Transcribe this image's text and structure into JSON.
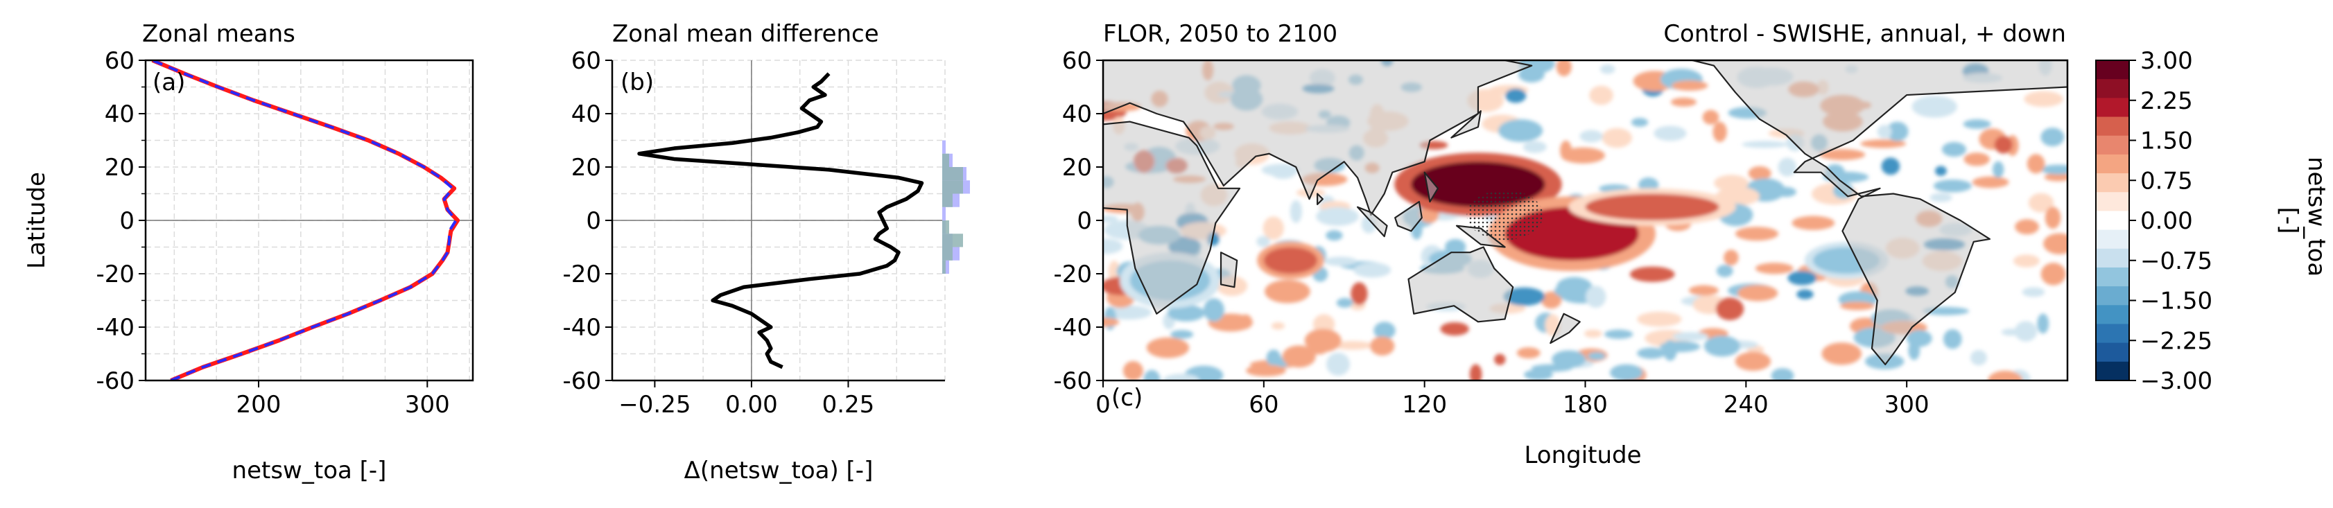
{
  "figure": {
    "panel_a_title": "Zonal means",
    "panel_b_title": "Zonal mean difference",
    "panel_c_title_left": "FLOR, 2050 to 2100",
    "panel_c_title_right": "Control - SWISHE, annual, + down",
    "colorbar_label": "netsw_toa\n[-]",
    "colors": {
      "control_line": "#ff1a1a",
      "swishe_line": "#2a2aff",
      "diff_line": "#000000",
      "land": "#d9d9d9",
      "hist_blue": "#b8b8ff",
      "hist_green": "#8fb3b3"
    }
  },
  "chart_data": [
    {
      "type": "line",
      "panel": "(a)",
      "title": "Zonal means",
      "xlabel": "netsw_toa [-]",
      "ylabel": "Latitude",
      "xlim": [
        133,
        327
      ],
      "ylim": [
        -60,
        60
      ],
      "xticks": [
        200,
        300
      ],
      "yticks": [
        -60,
        -40,
        -20,
        0,
        20,
        40,
        60
      ],
      "grid": true,
      "series": [
        {
          "color": "#ff1a1a",
          "style": "solid",
          "lat": [
            -60,
            -55,
            -50,
            -45,
            -40,
            -35,
            -30,
            -25,
            -20,
            -15,
            -12,
            -8,
            -4,
            0,
            4,
            8,
            12,
            16,
            20,
            25,
            30,
            35,
            40,
            45,
            50,
            55,
            60
          ],
          "values": [
            148,
            167,
            190,
            212,
            232,
            253,
            272,
            290,
            303,
            309,
            312,
            313,
            314,
            318,
            312,
            310,
            316,
            308,
            298,
            283,
            265,
            243,
            220,
            197,
            176,
            156,
            137
          ]
        },
        {
          "color": "#2a2aff",
          "style": "dashed",
          "lat": [
            -60,
            -55,
            -50,
            -45,
            -40,
            -35,
            -30,
            -25,
            -20,
            -15,
            -12,
            -8,
            -4,
            0,
            4,
            8,
            12,
            16,
            20,
            25,
            30,
            35,
            40,
            45,
            50,
            55,
            60
          ],
          "values": [
            148,
            167,
            190,
            212,
            232,
            253,
            272,
            290,
            303,
            309,
            312,
            313,
            313,
            317,
            312,
            310,
            315,
            308,
            298,
            283,
            265,
            243,
            220,
            197,
            176,
            156,
            137
          ]
        }
      ]
    },
    {
      "type": "line",
      "panel": "(b)",
      "title": "Zonal mean difference",
      "xlabel": "Δ(netsw_toa) [-]",
      "xlim": [
        -0.36,
        0.5
      ],
      "ylim": [
        -60,
        60
      ],
      "xticks": [
        -0.25,
        0.0,
        0.25
      ],
      "yticks": [
        -60,
        -40,
        -20,
        0,
        20,
        40,
        60
      ],
      "grid": true,
      "series": [
        {
          "color": "#000000",
          "lat": [
            -55,
            -53,
            -50,
            -48,
            -45,
            -42,
            -40,
            -38,
            -35,
            -32,
            -30,
            -28,
            -25,
            -22,
            -20,
            -17,
            -15,
            -12,
            -10,
            -7,
            -5,
            -3,
            0,
            3,
            5,
            8,
            11,
            14,
            16,
            19,
            21,
            23,
            25,
            27,
            29,
            31,
            33,
            35,
            37,
            40,
            42,
            45,
            47,
            50,
            52,
            55
          ],
          "values": [
            0.08,
            0.05,
            0.04,
            0.05,
            0.04,
            0.02,
            0.05,
            0.03,
            0.0,
            -0.05,
            -0.1,
            -0.08,
            -0.02,
            0.15,
            0.28,
            0.35,
            0.37,
            0.38,
            0.36,
            0.32,
            0.33,
            0.35,
            0.34,
            0.33,
            0.35,
            0.4,
            0.43,
            0.44,
            0.38,
            0.2,
            0.0,
            -0.2,
            -0.29,
            -0.2,
            -0.05,
            0.05,
            0.12,
            0.17,
            0.18,
            0.15,
            0.13,
            0.15,
            0.19,
            0.16,
            0.18,
            0.2
          ]
        }
      ],
      "histogram": {
        "bins": [
          -20,
          -15,
          -10,
          -5,
          0,
          5,
          10,
          15,
          20,
          25,
          30
        ],
        "series_blue": [
          2,
          5,
          3,
          1,
          1,
          5,
          8,
          7,
          3,
          1
        ],
        "series_green": [
          1,
          3,
          6,
          2,
          0,
          3,
          6,
          6,
          2,
          0
        ]
      }
    },
    {
      "type": "heatmap",
      "panel": "(c)",
      "title": "FLOR, 2050 to 2100",
      "subtitle": "Control - SWISHE, annual, + down",
      "xlabel": "Longitude",
      "xlim": [
        0,
        360
      ],
      "ylim": [
        -60,
        60
      ],
      "xticks": [
        0,
        60,
        120,
        180,
        240,
        300
      ],
      "yticks": [
        -60,
        -40,
        -20,
        0,
        20,
        40,
        60
      ],
      "colorbar": {
        "label": "netsw_toa\n[-]",
        "min": -3.0,
        "max": 3.0,
        "ticks": [
          "3.00",
          "2.25",
          "1.50",
          "0.75",
          "0.00",
          "−0.75",
          "−1.50",
          "−2.25",
          "−3.00"
        ]
      },
      "features": [
        {
          "lon": [
            115,
            165
          ],
          "lat": [
            5,
            22
          ],
          "value": 3.0
        },
        {
          "lon": [
            150,
            200
          ],
          "lat": [
            -15,
            5
          ],
          "value": 2.5
        },
        {
          "lon": [
            60,
            80
          ],
          "lat": [
            -20,
            -10
          ],
          "value": 2.0
        },
        {
          "lon": [
            265,
            290
          ],
          "lat": [
            -20,
            -10
          ],
          "value": -1.5
        },
        {
          "lon": [
            10,
            40
          ],
          "lat": [
            -30,
            -15
          ],
          "value": -1.5
        },
        {
          "lon": [
            180,
            230
          ],
          "lat": [
            0,
            10
          ],
          "value": 1.5
        }
      ]
    }
  ]
}
